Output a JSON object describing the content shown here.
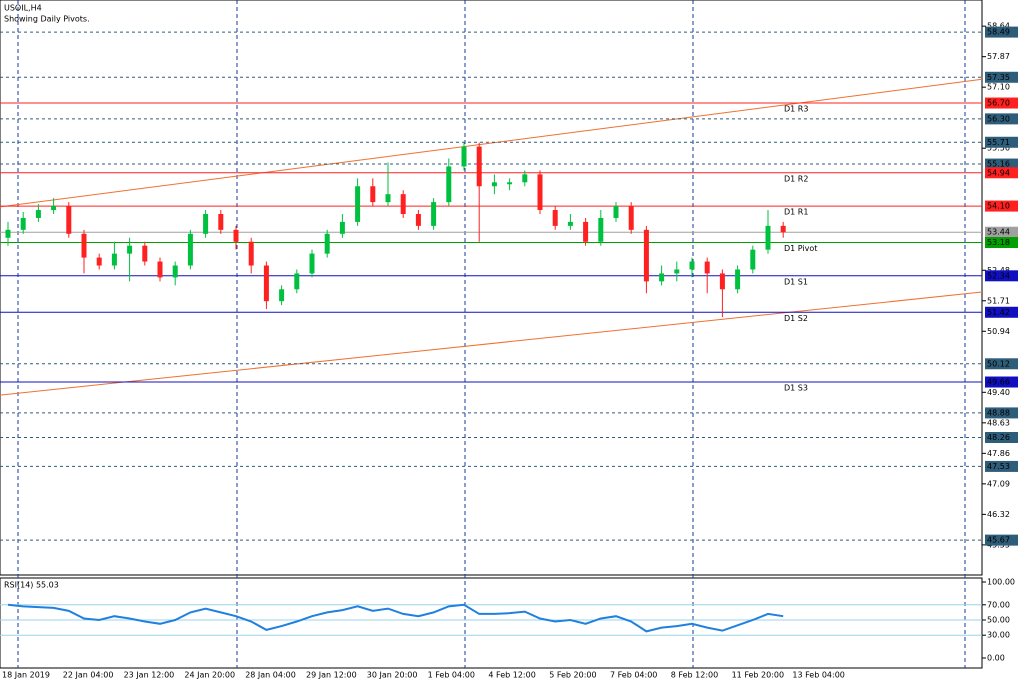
{
  "chart_data": {
    "type": "candlestick",
    "title": "USOIL,H4",
    "subtitle": "Showing Daily Pivots.",
    "ylim": [
      44.79,
      59.3
    ],
    "yticks": [
      58.64,
      57.87,
      {
        "value": 57.1,
        "label": "57.10"
      },
      55.56,
      52.48,
      51.71,
      50.94,
      {
        "value": 49.4,
        "label": "49.40"
      },
      48.63,
      47.86,
      47.09,
      46.32,
      45.55
    ],
    "x_labels": [
      "18 Jan 2019",
      "22 Jan 04:00",
      "23 Jan 12:00",
      "24 Jan 20:00",
      "28 Jan 04:00",
      "29 Jan 12:00",
      "30 Jan 20:00",
      "1 Feb 04:00",
      "4 Feb 12:00",
      "5 Feb 20:00",
      "7 Feb 04:00",
      "8 Feb 12:00",
      "11 Feb 20:00",
      "13 Feb 04:00"
    ],
    "up_color": "#00c040",
    "down_color": "#ff2020",
    "open": [
      53.3,
      53.5,
      53.8,
      54.0,
      54.1,
      53.4,
      52.8,
      52.6,
      52.9,
      53.1,
      52.7,
      52.3,
      52.6,
      53.4,
      53.9,
      53.5,
      53.2,
      52.6,
      51.7,
      52.0,
      52.4,
      52.9,
      53.4,
      53.7,
      54.6,
      54.2,
      54.4,
      53.9,
      53.6,
      54.2,
      55.1,
      55.6,
      54.6,
      54.65,
      54.7,
      54.9,
      54.0,
      53.6,
      53.7,
      53.2,
      53.8,
      54.1,
      53.5,
      52.2,
      52.4,
      52.5,
      52.7,
      52.4,
      52.0,
      52.5,
      53.0,
      53.6
    ],
    "high": [
      53.7,
      53.95,
      54.15,
      54.3,
      54.2,
      53.5,
      52.9,
      53.2,
      53.3,
      53.2,
      52.8,
      52.7,
      53.5,
      54.0,
      54.0,
      53.6,
      53.3,
      52.7,
      52.1,
      52.5,
      53.0,
      53.5,
      53.9,
      54.8,
      54.8,
      55.2,
      54.5,
      54.0,
      54.3,
      55.3,
      55.7,
      55.7,
      54.9,
      54.8,
      55.0,
      55.0,
      54.1,
      53.9,
      53.8,
      54.0,
      54.2,
      54.2,
      53.6,
      52.6,
      52.7,
      52.8,
      52.8,
      52.5,
      52.6,
      53.1,
      54.0,
      53.7
    ],
    "low": [
      53.1,
      53.4,
      53.7,
      53.9,
      53.3,
      52.4,
      52.5,
      52.5,
      52.2,
      52.6,
      52.2,
      52.1,
      52.5,
      53.3,
      53.4,
      53.0,
      52.4,
      51.5,
      51.6,
      51.9,
      52.3,
      52.8,
      53.3,
      53.6,
      54.1,
      54.1,
      53.8,
      53.5,
      53.5,
      54.1,
      55.0,
      53.2,
      54.4,
      54.5,
      54.6,
      53.9,
      53.5,
      53.5,
      53.1,
      53.1,
      53.7,
      53.4,
      51.9,
      52.1,
      52.2,
      52.3,
      51.9,
      51.3,
      51.9,
      52.4,
      52.9,
      53.3
    ],
    "close": [
      53.5,
      53.8,
      54.0,
      54.1,
      53.4,
      52.8,
      52.6,
      52.9,
      53.1,
      52.7,
      52.3,
      52.6,
      53.4,
      53.9,
      53.5,
      53.2,
      52.6,
      51.7,
      52.0,
      52.4,
      52.9,
      53.4,
      53.7,
      54.6,
      54.2,
      54.4,
      53.9,
      53.6,
      54.2,
      55.1,
      55.6,
      54.6,
      54.7,
      54.7,
      54.9,
      54.0,
      53.6,
      53.7,
      53.2,
      53.8,
      54.1,
      53.5,
      52.2,
      52.4,
      52.5,
      52.7,
      52.4,
      52.0,
      52.5,
      53.0,
      53.6,
      53.44
    ],
    "levels": [
      {
        "value": 58.49,
        "color": "#2e5d7a",
        "style": "dashed"
      },
      {
        "value": 57.35,
        "color": "#2e5d7a",
        "style": "dashed"
      },
      {
        "value": 56.7,
        "label": "56.70",
        "color": "#ff2020",
        "style": "solid",
        "name": "D1 R3"
      },
      {
        "value": 56.3,
        "label": "56.30",
        "color": "#2e5d7a",
        "style": "dashed"
      },
      {
        "value": 55.71,
        "color": "#2e5d7a",
        "style": "dashed"
      },
      {
        "value": 55.16,
        "color": "#2e5d7a",
        "style": "dashed"
      },
      {
        "value": 54.94,
        "color": "#ff2020",
        "style": "solid",
        "name": "D1 R2"
      },
      {
        "value": 54.1,
        "label": "54.10",
        "color": "#ff2020",
        "style": "solid",
        "name": "D1 R1"
      },
      {
        "value": 53.44,
        "color": "#a0a0a0",
        "style": "solid"
      },
      {
        "value": 53.18,
        "color": "#00a000",
        "style": "solid",
        "name": "D1 Pivot"
      },
      {
        "value": 52.34,
        "color": "#1010c0",
        "style": "solid",
        "name": "D1 S1"
      },
      {
        "value": 51.42,
        "color": "#1010c0",
        "style": "solid",
        "name": "D1 S2"
      },
      {
        "value": 50.12,
        "color": "#2e5d7a",
        "style": "dashed"
      },
      {
        "value": 49.66,
        "color": "#1010c0",
        "style": "solid",
        "name": "D1 S3"
      },
      {
        "value": 48.88,
        "color": "#2e5d7a",
        "style": "dashed"
      },
      {
        "value": 48.26,
        "color": "#2e5d7a",
        "style": "dashed"
      },
      {
        "value": 47.53,
        "color": "#2e5d7a",
        "style": "dashed"
      },
      {
        "value": 45.67,
        "color": "#2e5d7a",
        "style": "dashed"
      }
    ],
    "trend_lines": [
      {
        "start": 54.08,
        "end": 57.3,
        "color": "#f07030"
      },
      {
        "start": 49.33,
        "end": 51.93,
        "color": "#f07030"
      }
    ],
    "rsi": {
      "title": "RSI(14) 55.03",
      "color": "#2080e0",
      "ylim": [
        0,
        100
      ],
      "yticks": [
        {
          "value": 100,
          "label": "100.00"
        },
        {
          "value": 70,
          "label": "70.00"
        },
        {
          "value": 50,
          "label": "50.00"
        },
        {
          "value": 30,
          "label": "30.00"
        },
        {
          "value": 0,
          "label": "0.00"
        }
      ],
      "levels": [
        70,
        50,
        30
      ],
      "values": [
        70,
        68,
        67,
        66,
        62,
        52,
        50,
        55,
        52,
        48,
        45,
        50,
        60,
        65,
        60,
        55,
        48,
        37,
        42,
        48,
        55,
        60,
        63,
        68,
        62,
        65,
        58,
        55,
        60,
        68,
        70,
        58,
        58,
        59,
        61,
        52,
        48,
        50,
        45,
        52,
        55,
        48,
        35,
        40,
        42,
        45,
        40,
        36,
        43,
        50,
        58,
        55.03
      ]
    }
  }
}
